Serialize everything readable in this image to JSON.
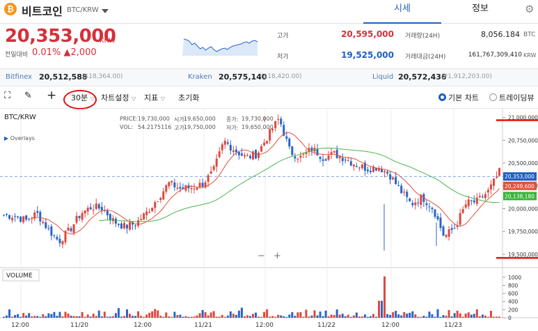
{
  "coin": {
    "icon": "bitcoin-icon",
    "name": "비트코인",
    "pair": "BTC/KRW"
  },
  "tabs": {
    "market": "시세",
    "info": "정보"
  },
  "price": {
    "current": "20,353,000",
    "unit": "KRW",
    "change_label": "전일대비",
    "change_pct": "0.01%",
    "change_amt": "▲2,000"
  },
  "stats": {
    "high_label": "고가",
    "high": "20,595,000",
    "low_label": "저가",
    "low": "19,525,000",
    "vol_label": "거래량(24H)",
    "vol": "8,056.184",
    "vol_unit": "BTC",
    "amt_label": "거래대금(24H)",
    "amt": "161,767,309,410",
    "amt_unit": "KRW"
  },
  "exchanges": [
    {
      "name": "Bitfinex",
      "price": "20,512,588",
      "sub": "($18,364.00)"
    },
    {
      "name": "Kraken",
      "price": "20,575,140",
      "sub": "($18,420.00)"
    },
    {
      "name": "Liquid",
      "price": "20,572,436",
      "sub": "(¥1,912,203.00)"
    }
  ],
  "toolbar": {
    "interval": "30분",
    "chart_settings": "차트설정",
    "indicators": "지표",
    "reset": "초기화",
    "basic_chart": "기본 차트",
    "tradingview": "트레이딩뷰"
  },
  "chart": {
    "symbol": "BTC/KRW",
    "overlays": "Overlays",
    "info_price_label": "PRICE:",
    "info_price": "19,730,000",
    "info_vol_label": "VOL:",
    "info_vol": "54.2175116",
    "open_label": "시가:",
    "open": "19,650,000",
    "high_label": "고가:",
    "high": "19,750,000",
    "close_label": "종가:",
    "close": "19,730,000",
    "low_label": "저가:",
    "low": "19,650,000",
    "volume_label": "VOLUME",
    "zoom_out": "−",
    "zoom_in": "+"
  },
  "chart_data": {
    "type": "candlestick",
    "title": "BTC/KRW",
    "interval": "30분",
    "ylim": [
      19400000,
      21050000
    ],
    "y_ticks": [
      "21,000,000",
      "20,750,000",
      "20,500,000",
      "20,250,000",
      "20,000,000",
      "19,750,000",
      "19,500,000"
    ],
    "vol_ticks": [
      "1000",
      "800",
      "600",
      "400",
      "200",
      "0"
    ],
    "x_ticks": [
      "12:00",
      "11/20",
      "12:00",
      "11/21",
      "12:00",
      "11/22",
      "12:00",
      "11/23"
    ],
    "price_tags": [
      {
        "value": "20,353,000",
        "color": "#1e5fc2"
      },
      {
        "value": "20,249,600",
        "color": "#e0513a"
      },
      {
        "value": "20,138,180",
        "color": "#3bb33b"
      }
    ],
    "close_anchors": [
      19930000,
      19920000,
      19870000,
      19950000,
      19780000,
      19640000,
      19770000,
      19950000,
      20020000,
      20000000,
      19860000,
      19800000,
      19840000,
      19960000,
      20120000,
      20280000,
      20220000,
      20230000,
      20270000,
      20400000,
      20740000,
      20640000,
      20560000,
      20600000,
      20800000,
      20990000,
      20620000,
      20560000,
      20660000,
      20560000,
      20600000,
      20550000,
      20480000,
      20440000,
      20460000,
      20380000,
      20200000,
      20050000,
      20130000,
      20000000,
      19690000,
      19800000,
      20060000,
      20080000,
      20190000,
      20400000
    ]
  },
  "colors": {
    "up": "#e0473c",
    "down": "#2a64c8",
    "ma_short": "#e0513a",
    "ma_long": "#49b649",
    "accent": "#1e5fc2"
  }
}
